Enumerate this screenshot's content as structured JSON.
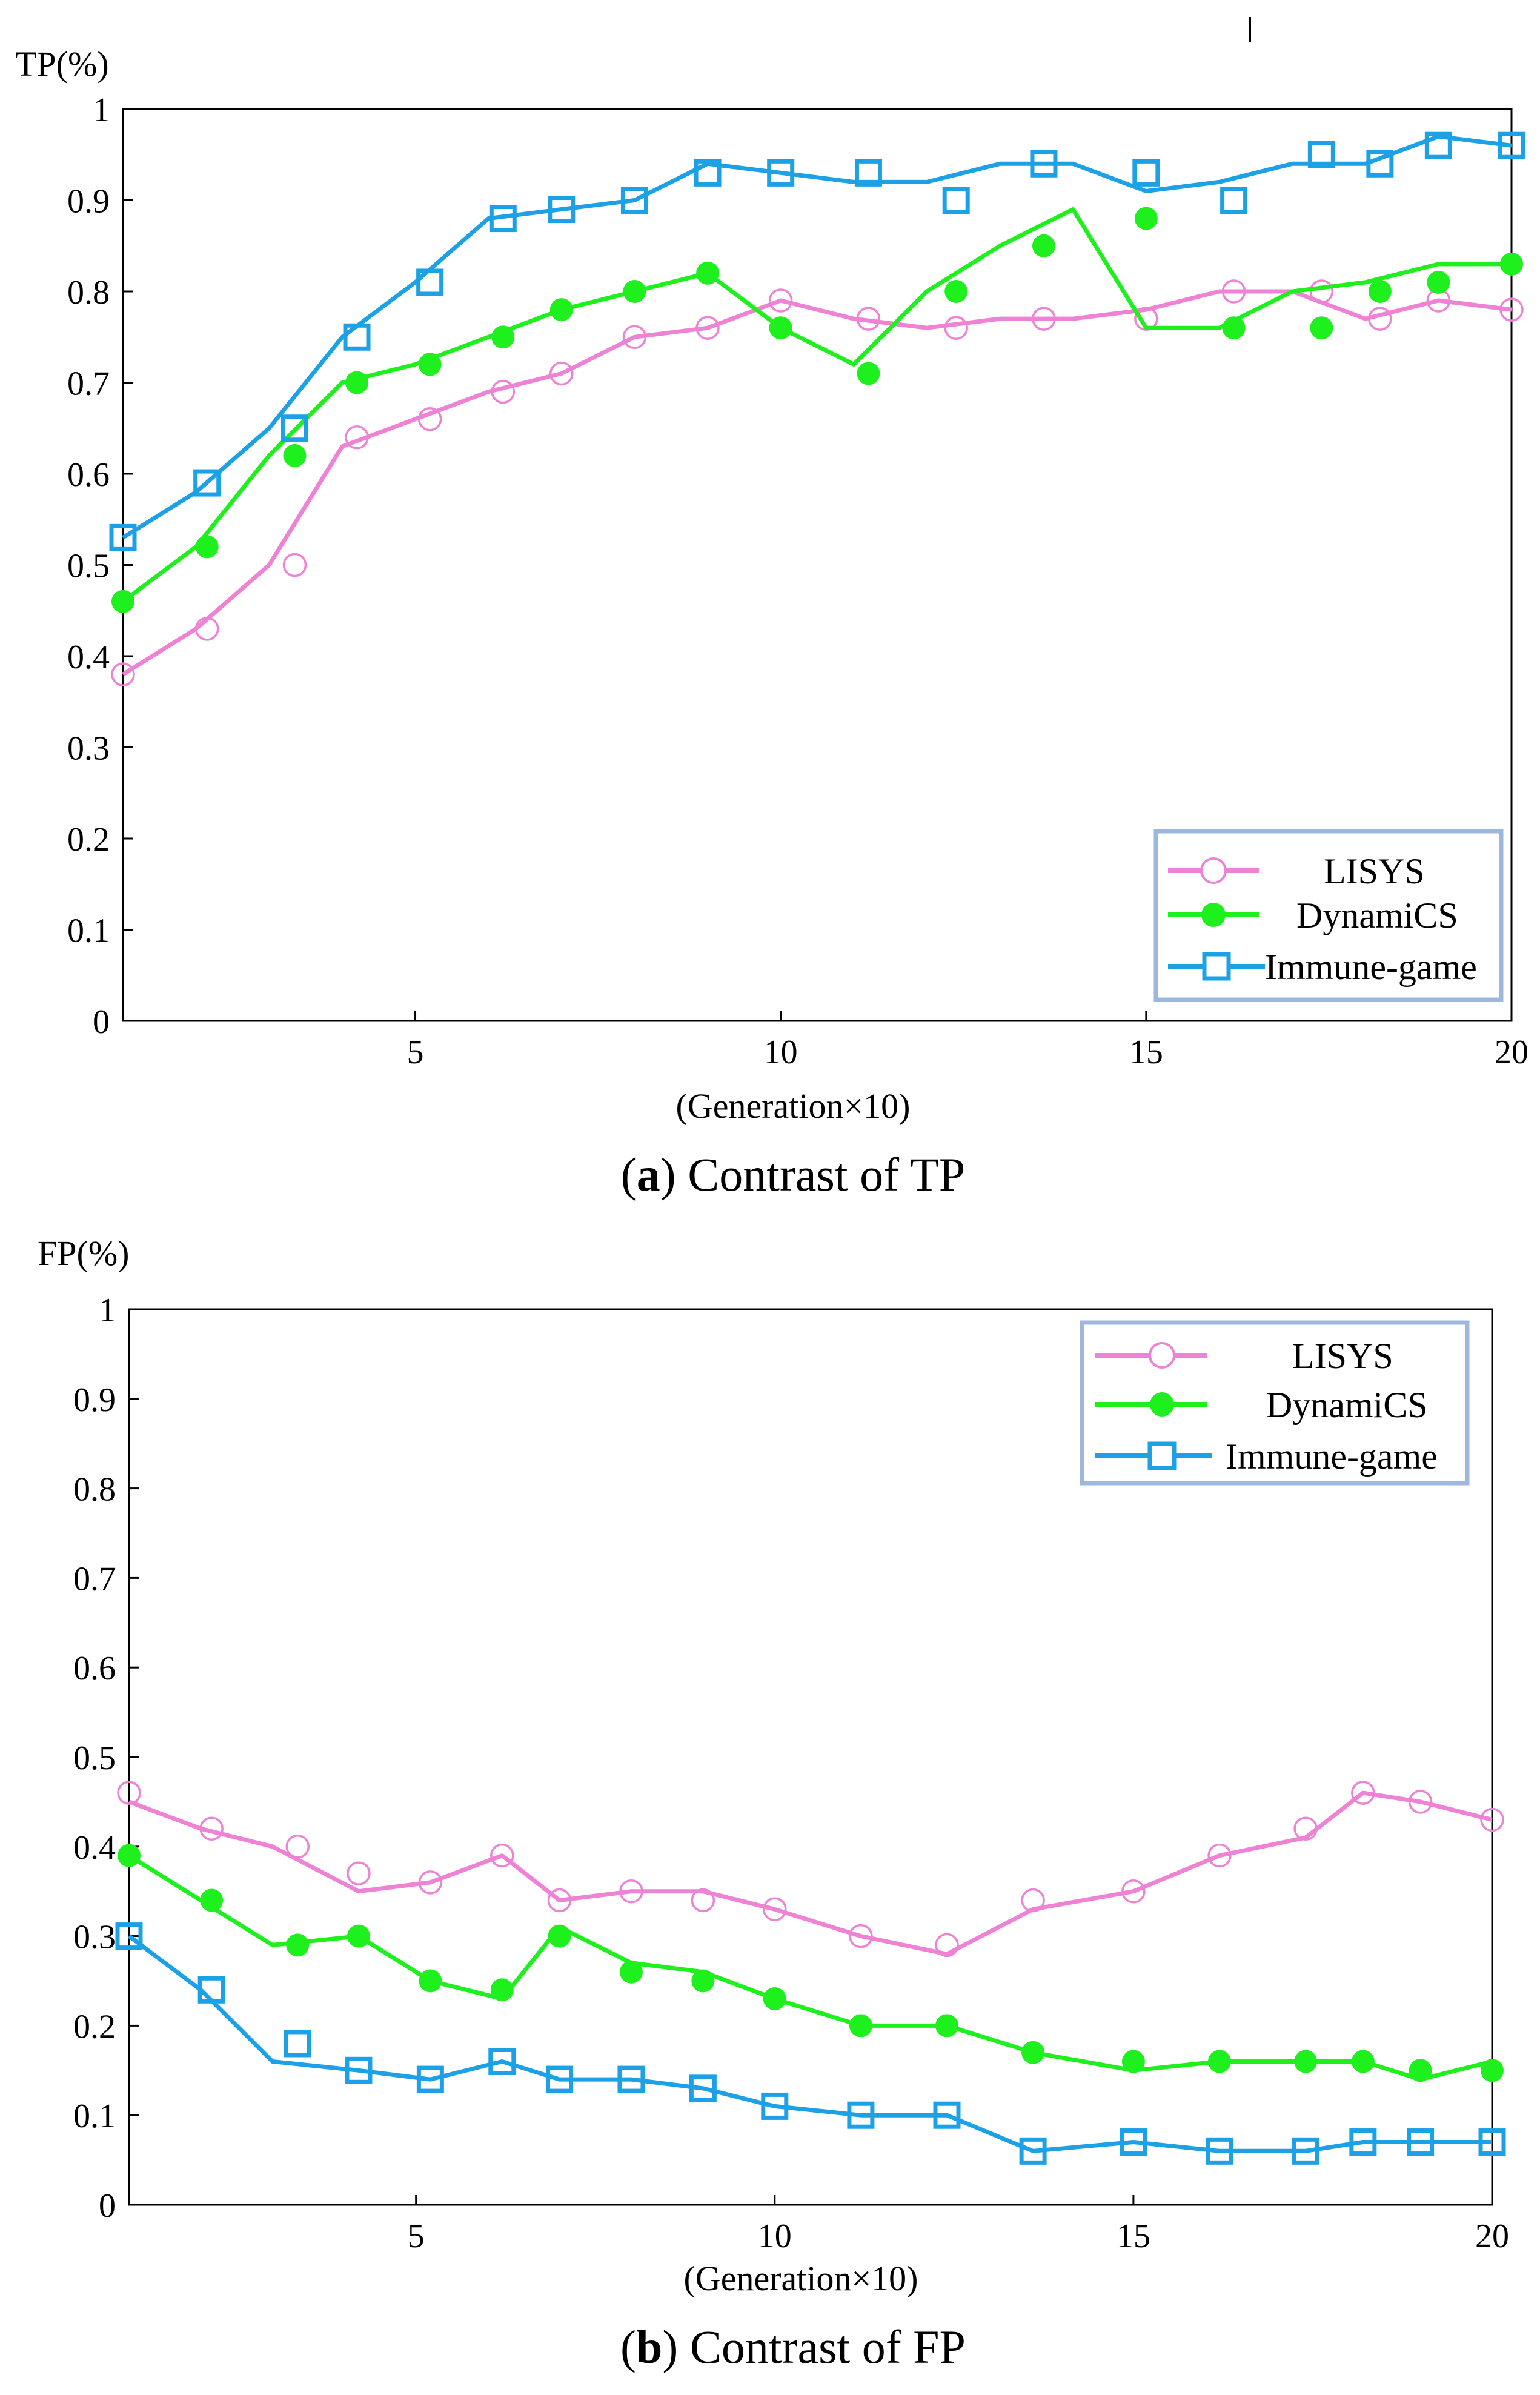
{
  "chart_data": [
    {
      "id": "tp",
      "type": "line",
      "title": "",
      "ylabel": "TP(%)",
      "xlabel": "(Generation×10)",
      "caption_label": "a",
      "caption_text": "Contrast of TP",
      "xlim": [
        1,
        20
      ],
      "ylim": [
        0,
        1
      ],
      "xticks": [
        5,
        10,
        15,
        20
      ],
      "yticks": [
        0,
        0.1,
        0.2,
        0.3,
        0.4,
        0.5,
        0.6,
        0.7,
        0.8,
        0.9,
        1
      ],
      "ytick_labels": [
        "0",
        "0.1",
        "0.2",
        "0.3",
        "0.4",
        "0.5",
        "0.6",
        "0.7",
        "0.8",
        "0.9",
        "1"
      ],
      "xtick_labels": [
        "5",
        "10",
        "15",
        "20"
      ],
      "legend": [
        "LISYS",
        "DynamiCS",
        "Immune-game"
      ],
      "legend_position": "bottom-right",
      "series": [
        {
          "name": "LISYS",
          "color": "#ee82d4",
          "marker": "open-circle",
          "line": [
            [
              1,
              0.38
            ],
            [
              2,
              0.43
            ],
            [
              3,
              0.5
            ],
            [
              4,
              0.63
            ],
            [
              5,
              0.66
            ],
            [
              6,
              0.69
            ],
            [
              7,
              0.71
            ],
            [
              8,
              0.75
            ],
            [
              9,
              0.76
            ],
            [
              10,
              0.79
            ],
            [
              11,
              0.77
            ],
            [
              12,
              0.76
            ],
            [
              13,
              0.77
            ],
            [
              14,
              0.77
            ],
            [
              15,
              0.78
            ],
            [
              16,
              0.8
            ],
            [
              17,
              0.8
            ],
            [
              18,
              0.77
            ],
            [
              19,
              0.79
            ],
            [
              20,
              0.78
            ]
          ],
          "points": [
            [
              1,
              0.38
            ],
            [
              2.15,
              0.43
            ],
            [
              3.35,
              0.5
            ],
            [
              4.2,
              0.64
            ],
            [
              5.2,
              0.66
            ],
            [
              6.2,
              0.69
            ],
            [
              7.0,
              0.71
            ],
            [
              8.0,
              0.75
            ],
            [
              9.0,
              0.76
            ],
            [
              10.0,
              0.79
            ],
            [
              11.2,
              0.77
            ],
            [
              12.4,
              0.76
            ],
            [
              13.6,
              0.77
            ],
            [
              15.0,
              0.77
            ],
            [
              16.2,
              0.8
            ],
            [
              17.4,
              0.8
            ],
            [
              18.2,
              0.77
            ],
            [
              19.0,
              0.79
            ],
            [
              20,
              0.78
            ]
          ]
        },
        {
          "name": "DynamiCS",
          "color": "#1ef01e",
          "marker": "filled-circle",
          "line": [
            [
              1,
              0.46
            ],
            [
              2,
              0.52
            ],
            [
              3,
              0.62
            ],
            [
              4,
              0.7
            ],
            [
              5,
              0.72
            ],
            [
              6,
              0.75
            ],
            [
              7,
              0.78
            ],
            [
              8,
              0.8
            ],
            [
              9,
              0.82
            ],
            [
              10,
              0.76
            ],
            [
              11,
              0.72
            ],
            [
              12,
              0.8
            ],
            [
              13,
              0.85
            ],
            [
              14,
              0.89
            ],
            [
              15,
              0.76
            ],
            [
              16,
              0.76
            ],
            [
              17,
              0.8
            ],
            [
              18,
              0.81
            ],
            [
              19,
              0.83
            ],
            [
              20,
              0.83
            ]
          ],
          "points": [
            [
              1,
              0.46
            ],
            [
              2.15,
              0.52
            ],
            [
              3.35,
              0.62
            ],
            [
              4.2,
              0.7
            ],
            [
              5.2,
              0.72
            ],
            [
              6.2,
              0.75
            ],
            [
              7.0,
              0.78
            ],
            [
              8.0,
              0.8
            ],
            [
              9.0,
              0.82
            ],
            [
              10.0,
              0.76
            ],
            [
              11.2,
              0.71
            ],
            [
              12.4,
              0.8
            ],
            [
              13.6,
              0.85
            ],
            [
              15.0,
              0.88
            ],
            [
              16.2,
              0.76
            ],
            [
              17.4,
              0.76
            ],
            [
              18.2,
              0.8
            ],
            [
              19.0,
              0.81
            ],
            [
              20,
              0.83
            ]
          ]
        },
        {
          "name": "Immune-game",
          "color": "#1ca0e6",
          "marker": "open-square",
          "line": [
            [
              1,
              0.53
            ],
            [
              2,
              0.58
            ],
            [
              3,
              0.65
            ],
            [
              4,
              0.75
            ],
            [
              5,
              0.81
            ],
            [
              6,
              0.88
            ],
            [
              7,
              0.89
            ],
            [
              8,
              0.9
            ],
            [
              9,
              0.94
            ],
            [
              10,
              0.93
            ],
            [
              11,
              0.92
            ],
            [
              12,
              0.92
            ],
            [
              13,
              0.94
            ],
            [
              14,
              0.94
            ],
            [
              15,
              0.91
            ],
            [
              16,
              0.92
            ],
            [
              17,
              0.94
            ],
            [
              18,
              0.94
            ],
            [
              19,
              0.97
            ],
            [
              20,
              0.96
            ]
          ],
          "points": [
            [
              1,
              0.53
            ],
            [
              2.15,
              0.59
            ],
            [
              3.35,
              0.65
            ],
            [
              4.2,
              0.75
            ],
            [
              5.2,
              0.81
            ],
            [
              6.2,
              0.88
            ],
            [
              7.0,
              0.89
            ],
            [
              8.0,
              0.9
            ],
            [
              9.0,
              0.93
            ],
            [
              10.0,
              0.93
            ],
            [
              11.2,
              0.93
            ],
            [
              12.4,
              0.9
            ],
            [
              13.6,
              0.94
            ],
            [
              15.0,
              0.93
            ],
            [
              16.2,
              0.9
            ],
            [
              17.4,
              0.95
            ],
            [
              18.2,
              0.94
            ],
            [
              19.0,
              0.96
            ],
            [
              20,
              0.96
            ]
          ]
        }
      ]
    },
    {
      "id": "fp",
      "type": "line",
      "title": "",
      "ylabel": "FP(%)",
      "xlabel": "(Generation×10)",
      "caption_label": "b",
      "caption_text": "Contrast of FP",
      "xlim": [
        1,
        20
      ],
      "ylim": [
        0,
        1
      ],
      "xticks": [
        5,
        10,
        15,
        20
      ],
      "yticks": [
        0,
        0.1,
        0.2,
        0.3,
        0.4,
        0.5,
        0.6,
        0.7,
        0.8,
        0.9,
        1
      ],
      "ytick_labels": [
        "0",
        "0.1",
        "0.2",
        "0.3",
        "0.4",
        "0.5",
        "0.6",
        "0.7",
        "0.8",
        "0.9",
        "1"
      ],
      "xtick_labels": [
        "5",
        "10",
        "15",
        "20"
      ],
      "legend": [
        "LISYS",
        "DynamiCS",
        "Immune-game"
      ],
      "legend_position": "top-right",
      "series": [
        {
          "name": "LISYS",
          "color": "#ee82d4",
          "marker": "open-circle",
          "line": [
            [
              1,
              0.45
            ],
            [
              2,
              0.42
            ],
            [
              3,
              0.4
            ],
            [
              4.2,
              0.35
            ],
            [
              5.2,
              0.36
            ],
            [
              6.2,
              0.39
            ],
            [
              7.0,
              0.34
            ],
            [
              8.0,
              0.35
            ],
            [
              9.0,
              0.35
            ],
            [
              10.0,
              0.33
            ],
            [
              11.2,
              0.3
            ],
            [
              12.4,
              0.28
            ],
            [
              13.6,
              0.33
            ],
            [
              15.0,
              0.35
            ],
            [
              16.2,
              0.39
            ],
            [
              17.4,
              0.41
            ],
            [
              18.2,
              0.46
            ],
            [
              19.0,
              0.45
            ],
            [
              20,
              0.43
            ]
          ],
          "points": [
            [
              1,
              0.46
            ],
            [
              2.15,
              0.42
            ],
            [
              3.35,
              0.4
            ],
            [
              4.2,
              0.37
            ],
            [
              5.2,
              0.36
            ],
            [
              6.2,
              0.39
            ],
            [
              7.0,
              0.34
            ],
            [
              8.0,
              0.35
            ],
            [
              9.0,
              0.34
            ],
            [
              10.0,
              0.33
            ],
            [
              11.2,
              0.3
            ],
            [
              12.4,
              0.29
            ],
            [
              13.6,
              0.34
            ],
            [
              15.0,
              0.35
            ],
            [
              16.2,
              0.39
            ],
            [
              17.4,
              0.42
            ],
            [
              18.2,
              0.46
            ],
            [
              19.0,
              0.45
            ],
            [
              20,
              0.43
            ]
          ]
        },
        {
          "name": "DynamiCS",
          "color": "#1ef01e",
          "marker": "filled-circle",
          "line": [
            [
              1,
              0.39
            ],
            [
              2,
              0.34
            ],
            [
              3,
              0.29
            ],
            [
              4.2,
              0.3
            ],
            [
              5.2,
              0.25
            ],
            [
              6.2,
              0.23
            ],
            [
              7.0,
              0.31
            ],
            [
              8.0,
              0.27
            ],
            [
              9.0,
              0.26
            ],
            [
              10.0,
              0.23
            ],
            [
              11.2,
              0.2
            ],
            [
              12.4,
              0.2
            ],
            [
              13.6,
              0.17
            ],
            [
              15.0,
              0.15
            ],
            [
              16.2,
              0.16
            ],
            [
              17.4,
              0.16
            ],
            [
              18.2,
              0.16
            ],
            [
              19.0,
              0.14
            ],
            [
              20,
              0.16
            ]
          ],
          "points": [
            [
              1,
              0.39
            ],
            [
              2.15,
              0.34
            ],
            [
              3.35,
              0.29
            ],
            [
              4.2,
              0.3
            ],
            [
              5.2,
              0.25
            ],
            [
              6.2,
              0.24
            ],
            [
              7.0,
              0.3
            ],
            [
              8.0,
              0.26
            ],
            [
              9.0,
              0.25
            ],
            [
              10.0,
              0.23
            ],
            [
              11.2,
              0.2
            ],
            [
              12.4,
              0.2
            ],
            [
              13.6,
              0.17
            ],
            [
              15.0,
              0.16
            ],
            [
              16.2,
              0.16
            ],
            [
              17.4,
              0.16
            ],
            [
              18.2,
              0.16
            ],
            [
              19.0,
              0.15
            ],
            [
              20,
              0.15
            ]
          ]
        },
        {
          "name": "Immune-game",
          "color": "#1ca0e6",
          "marker": "open-square",
          "line": [
            [
              1,
              0.3
            ],
            [
              2,
              0.24
            ],
            [
              3,
              0.16
            ],
            [
              4.2,
              0.15
            ],
            [
              5.2,
              0.14
            ],
            [
              6.2,
              0.16
            ],
            [
              7.0,
              0.14
            ],
            [
              8.0,
              0.14
            ],
            [
              9.0,
              0.13
            ],
            [
              10.0,
              0.11
            ],
            [
              11.2,
              0.1
            ],
            [
              12.4,
              0.1
            ],
            [
              13.6,
              0.06
            ],
            [
              15.0,
              0.07
            ],
            [
              16.2,
              0.06
            ],
            [
              17.4,
              0.06
            ],
            [
              18.2,
              0.07
            ],
            [
              19.0,
              0.07
            ],
            [
              20,
              0.07
            ]
          ],
          "points": [
            [
              1,
              0.3
            ],
            [
              2.15,
              0.24
            ],
            [
              3.35,
              0.18
            ],
            [
              4.2,
              0.15
            ],
            [
              5.2,
              0.14
            ],
            [
              6.2,
              0.16
            ],
            [
              7.0,
              0.14
            ],
            [
              8.0,
              0.14
            ],
            [
              9.0,
              0.13
            ],
            [
              10.0,
              0.11
            ],
            [
              11.2,
              0.1
            ],
            [
              12.4,
              0.1
            ],
            [
              13.6,
              0.06
            ],
            [
              15.0,
              0.07
            ],
            [
              16.2,
              0.06
            ],
            [
              17.4,
              0.06
            ],
            [
              18.2,
              0.07
            ],
            [
              19.0,
              0.07
            ],
            [
              20,
              0.07
            ]
          ]
        }
      ]
    }
  ]
}
